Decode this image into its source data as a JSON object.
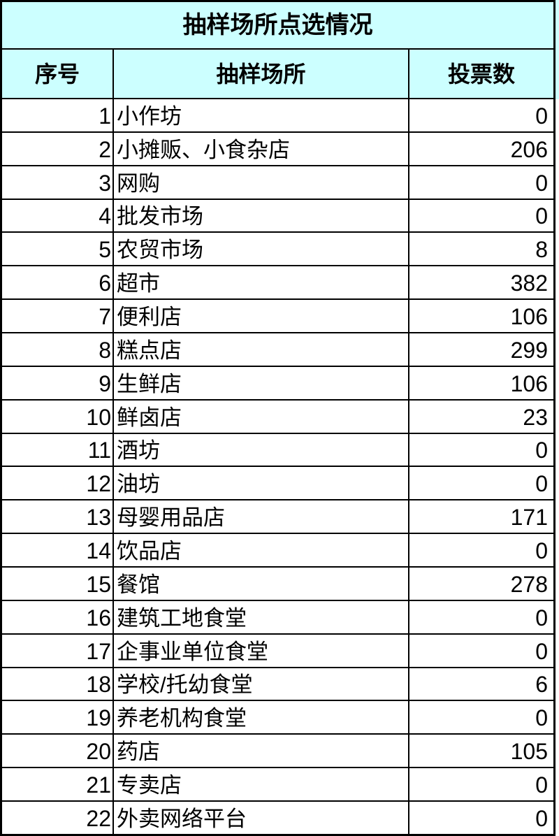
{
  "colors": {
    "header_bg": "#CCFFFF",
    "row_bg": "#FFFFFF",
    "border": "#000000",
    "text": "#000000"
  },
  "chart_data": {
    "type": "table",
    "title": "抽样场所点选情况",
    "columns": [
      "序号",
      "抽样场所",
      "投票数"
    ],
    "rows": [
      [
        1,
        "小作坊",
        0
      ],
      [
        2,
        "小摊贩、小食杂店",
        206
      ],
      [
        3,
        "网购",
        0
      ],
      [
        4,
        "批发市场",
        0
      ],
      [
        5,
        "农贸市场",
        8
      ],
      [
        6,
        "超市",
        382
      ],
      [
        7,
        "便利店",
        106
      ],
      [
        8,
        "糕点店",
        299
      ],
      [
        9,
        "生鲜店",
        106
      ],
      [
        10,
        "鲜卤店",
        23
      ],
      [
        11,
        "酒坊",
        0
      ],
      [
        12,
        "油坊",
        0
      ],
      [
        13,
        "母婴用品店",
        171
      ],
      [
        14,
        "饮品店",
        0
      ],
      [
        15,
        "餐馆",
        278
      ],
      [
        16,
        "建筑工地食堂",
        0
      ],
      [
        17,
        "企事业单位食堂",
        0
      ],
      [
        18,
        "学校/托幼食堂",
        6
      ],
      [
        19,
        "养老机构食堂",
        0
      ],
      [
        20,
        "药店",
        105
      ],
      [
        21,
        "专卖店",
        0
      ],
      [
        22,
        "外卖网络平台",
        0
      ]
    ]
  }
}
